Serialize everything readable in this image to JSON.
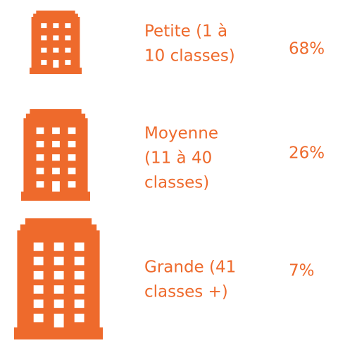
{
  "items": [
    {
      "lines": [
        "Petite (1 à",
        "10 classes)"
      ],
      "value": "68%"
    },
    {
      "lines": [
        "Moyenne",
        "(11 à 40",
        "classes)"
      ],
      "value": "26%"
    },
    {
      "lines": [
        "Grande (41",
        "classes +)"
      ],
      "value": "7%"
    }
  ]
}
